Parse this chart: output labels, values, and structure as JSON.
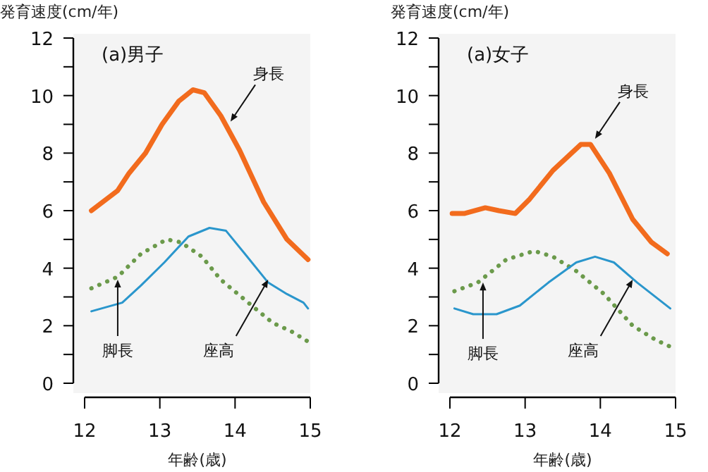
{
  "chart_data": [
    {
      "type": "line",
      "title": "(a)男子",
      "xlabel": "年齢(歳)",
      "ylabel": "発育速度(cm/年)",
      "xlim": [
        12,
        15
      ],
      "ylim": [
        0,
        12
      ],
      "xticks": [
        12,
        13,
        14,
        15
      ],
      "yticks": [
        0,
        {
          "value": 1,
          "label": null
        },
        2,
        {
          "value": 3,
          "label": null
        },
        4,
        {
          "value": 5,
          "label": null
        },
        6,
        {
          "value": 7,
          "label": null
        },
        8,
        {
          "value": 9,
          "label": null
        },
        10,
        {
          "value": 11,
          "label": null
        },
        12
      ],
      "series": [
        {
          "color": "#f26b1d",
          "line_style": "solid",
          "x": [
            12.09,
            12.44,
            12.59,
            12.81,
            13.03,
            13.25,
            13.44,
            13.59,
            13.81,
            14.06,
            14.38,
            14.69,
            14.97
          ],
          "values": [
            6.0,
            6.7,
            7.3,
            8.0,
            9.0,
            9.8,
            10.2,
            10.1,
            9.3,
            8.1,
            6.3,
            5.0,
            4.3
          ]
        },
        {
          "color": "#6b9a4b",
          "line_style": "dotted",
          "x": [
            12.09,
            12.44,
            12.75,
            13.09,
            13.28,
            13.56,
            13.81,
            14.13,
            14.5,
            14.75,
            15.0
          ],
          "values": [
            3.3,
            3.7,
            4.5,
            5.0,
            4.9,
            4.4,
            3.6,
            2.9,
            2.1,
            1.8,
            1.4
          ]
        },
        {
          "color": "#2a96cc",
          "line_style": "solid",
          "x": [
            12.09,
            12.5,
            12.75,
            13.06,
            13.38,
            13.66,
            13.88,
            14.13,
            14.44,
            14.69,
            14.91,
            14.97
          ],
          "values": [
            2.5,
            2.8,
            3.4,
            4.2,
            5.1,
            5.4,
            5.3,
            4.5,
            3.5,
            3.1,
            2.8,
            2.6
          ]
        }
      ],
      "annotations": [
        {
          "text": "身長",
          "x": 13.94,
          "y": 9.1
        },
        {
          "text": "脚長",
          "x": 12.44,
          "y": 3.6
        },
        {
          "text": "座高",
          "x": 14.44,
          "y": 3.6
        }
      ]
    },
    {
      "type": "line",
      "title": "(a)女子",
      "xlabel": "年齢(歳)",
      "ylabel": "発育速度(cm/年)",
      "xlim": [
        12,
        15
      ],
      "ylim": [
        0,
        12
      ],
      "xticks": [
        12,
        13,
        14,
        15
      ],
      "yticks": [
        0,
        {
          "value": 1,
          "label": null
        },
        2,
        {
          "value": 3,
          "label": null
        },
        4,
        {
          "value": 5,
          "label": null
        },
        6,
        {
          "value": 7,
          "label": null
        },
        8,
        {
          "value": 9,
          "label": null
        },
        10,
        {
          "value": 11,
          "label": null
        },
        12
      ],
      "series": [
        {
          "color": "#f26b1d",
          "line_style": "solid",
          "x": [
            12.03,
            12.19,
            12.47,
            12.65,
            12.87,
            13.06,
            13.37,
            13.74,
            13.87,
            14.12,
            14.43,
            14.68,
            14.89
          ],
          "values": [
            5.9,
            5.9,
            6.1,
            6.0,
            5.9,
            6.4,
            7.4,
            8.3,
            8.3,
            7.3,
            5.7,
            4.9,
            4.5
          ]
        },
        {
          "color": "#6b9a4b",
          "line_style": "dotted",
          "x": [
            12.06,
            12.37,
            12.75,
            13.12,
            13.37,
            13.68,
            14.05,
            14.43,
            14.74,
            14.99
          ],
          "values": [
            3.2,
            3.5,
            4.3,
            4.6,
            4.4,
            3.9,
            3.1,
            2.0,
            1.5,
            1.2
          ]
        },
        {
          "color": "#2a96cc",
          "line_style": "solid",
          "x": [
            12.06,
            12.31,
            12.62,
            12.93,
            13.31,
            13.68,
            13.93,
            14.18,
            14.49,
            14.93
          ],
          "values": [
            2.6,
            2.4,
            2.4,
            2.7,
            3.5,
            4.2,
            4.4,
            4.2,
            3.5,
            2.6
          ]
        }
      ],
      "annotations": [
        {
          "text": "身長",
          "x": 13.93,
          "y": 8.5
        },
        {
          "text": "脚長",
          "x": 12.44,
          "y": 3.5
        },
        {
          "text": "座高",
          "x": 14.43,
          "y": 3.6
        }
      ]
    }
  ]
}
